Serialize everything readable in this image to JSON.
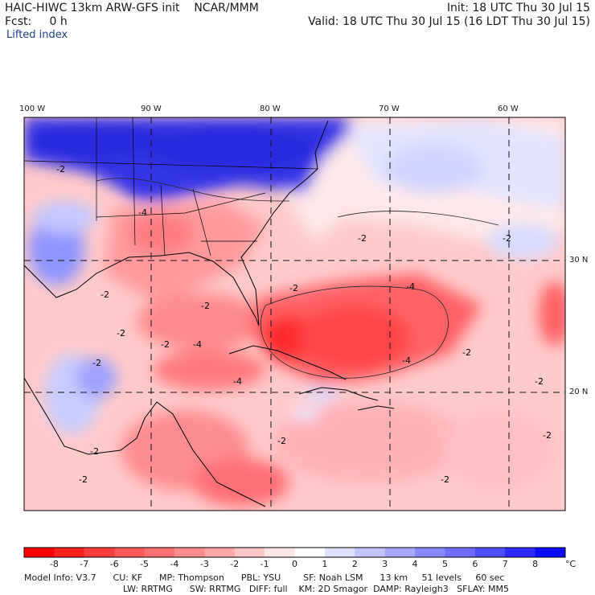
{
  "header": {
    "model_title": "HAIC-HIWC 13km ARW-GFS init",
    "org": "NCAR/MMM",
    "init_time": "Init: 18 UTC Thu 30 Jul 15",
    "forecast_label": "Fcst:",
    "forecast_value": "0 h",
    "valid_time": "Valid: 18 UTC Thu 30 Jul 15 (16 LDT Thu 30 Jul 15)",
    "field_name": "Lifted index"
  },
  "map": {
    "lon_labels": [
      "100 W",
      "90 W",
      "80 W",
      "70 W",
      "60 W"
    ],
    "lat_labels": [
      "30 N",
      "20 N"
    ],
    "contour_labels": [
      "-2",
      "-4"
    ]
  },
  "colorbar": {
    "levels": [
      "-8",
      "-7",
      "-6",
      "-5",
      "-4",
      "-3",
      "-2",
      "-1",
      "0",
      "1",
      "2",
      "3",
      "4",
      "5",
      "6",
      "7",
      "8"
    ],
    "unit": "°C",
    "colors": [
      "#ff0000",
      "#ff2020",
      "#ff3c3c",
      "#ff5656",
      "#ff7070",
      "#ff8c8c",
      "#ffa8a8",
      "#ffc8c8",
      "#ffe6e6",
      "#ffffff",
      "#e0e0ff",
      "#c4c4ff",
      "#a8a8ff",
      "#8a8aff",
      "#6c6cff",
      "#4c4cff",
      "#2c2cff",
      "#0a0aff"
    ]
  },
  "footer": {
    "line1": "Model Info: V3.7      CU: KF      MP: Thompson      PBL: YSU        SF: Noah LSM      13 km     51 levels     60 sec",
    "line2": "LW: RRTMG      SW: RRTMG   DIFF: full    KM: 2D Smagor  DAMP: Rayleigh3   SFLAY: MM5"
  }
}
